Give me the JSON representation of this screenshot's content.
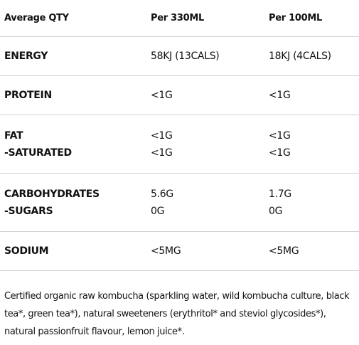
{
  "table": {
    "header": [
      "Average QTY",
      "Per 330ML",
      "Per 100ML"
    ],
    "rows": [
      [
        [
          "ENERGY"
        ],
        [
          "58KJ (13CALS)"
        ],
        [
          "18KJ (4CALS)"
        ]
      ],
      [
        [
          "PROTEIN"
        ],
        [
          "<1G"
        ],
        [
          "<1G"
        ]
      ],
      [
        [
          "FAT",
          "-SATURATED"
        ],
        [
          "<1G",
          "<1G"
        ],
        [
          "<1G",
          "<1G"
        ]
      ],
      [
        [
          "CARBOHYDRATES",
          "-SUGARS"
        ],
        [
          "5.6G",
          "0G"
        ],
        [
          "1.7G",
          "0G"
        ]
      ],
      [
        [
          "SODIUM"
        ],
        [
          "<5MG"
        ],
        [
          "<5MG"
        ]
      ]
    ]
  },
  "footnote": "Certified organic raw kombucha (sparkling water, wild kombucha culture, black tea*, green tea*), natural sweeteners (erythritol* and steviol glycosides*), natural passionfruit flavour, lemon juice*."
}
